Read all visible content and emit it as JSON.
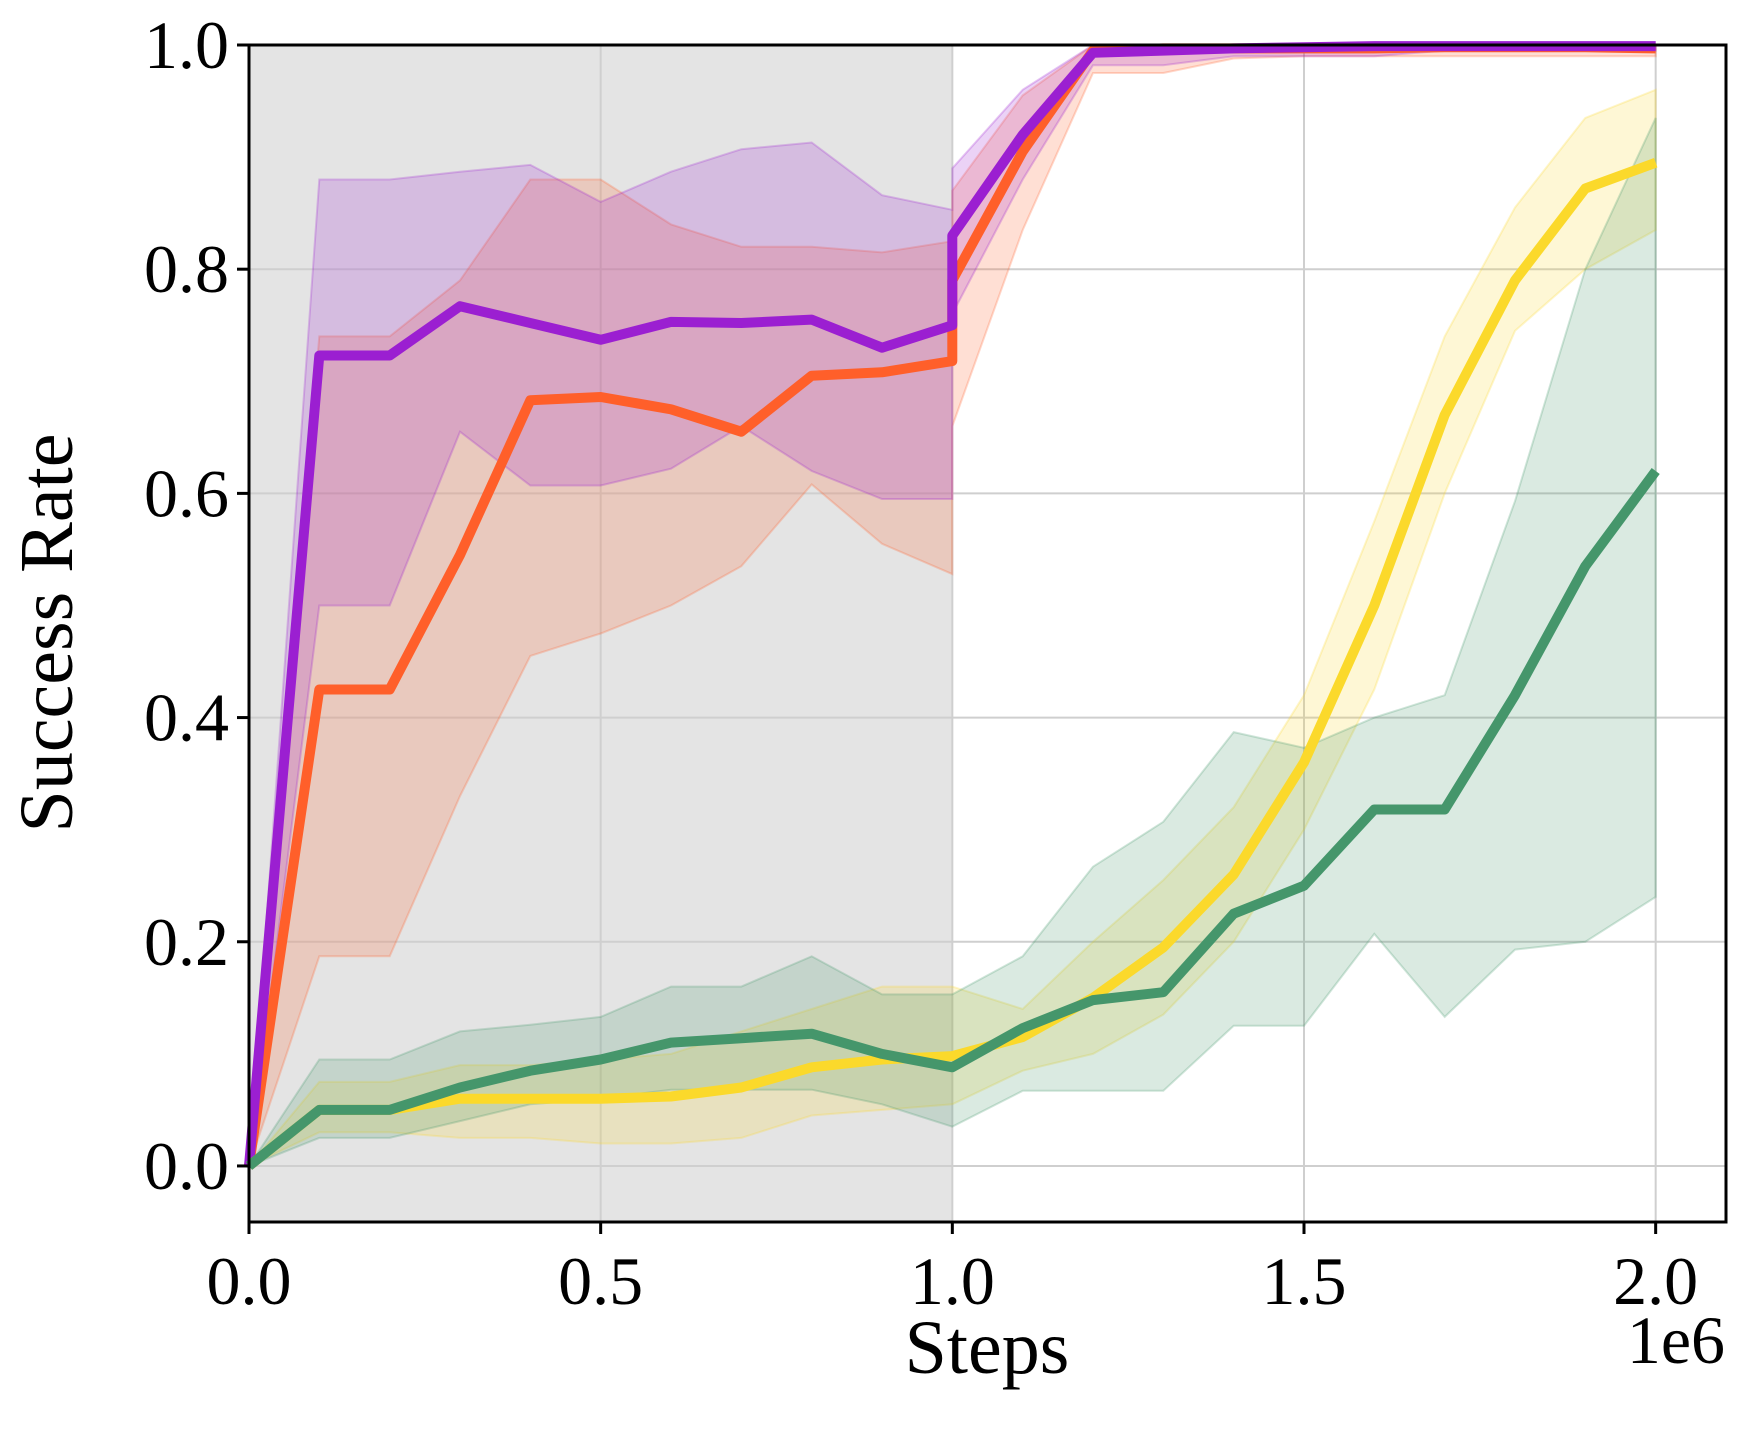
{
  "chart_data": {
    "type": "line",
    "title": "",
    "xlabel": "Steps",
    "ylabel": "Success Rate",
    "x_offset_label": "1e6",
    "xlim": [
      0.0,
      2.1
    ],
    "ylim": [
      -0.05,
      1.0
    ],
    "grid": true,
    "x_ticks": [
      0.0,
      0.5,
      1.0,
      1.5,
      2.0
    ],
    "x_tick_labels": [
      "0.0",
      "0.5",
      "1.0",
      "1.5",
      "2.0"
    ],
    "y_ticks": [
      0.0,
      0.2,
      0.4,
      0.6,
      0.8,
      1.0
    ],
    "y_tick_labels": [
      "0.0",
      "0.2",
      "0.4",
      "0.6",
      "0.8",
      "1.0"
    ],
    "shaded_region": {
      "x_start": 0.0,
      "x_end": 1.0,
      "color": "#e4e4e4"
    },
    "series": [
      {
        "name": "orange",
        "color": "#ff5f2a",
        "x": [
          0.0,
          0.1,
          0.2,
          0.3,
          0.4,
          0.5,
          0.6,
          0.7,
          0.8,
          0.9,
          1.0,
          1.0,
          1.1,
          1.2,
          1.3,
          1.4,
          1.5,
          1.6,
          1.7,
          1.8,
          1.9,
          2.0
        ],
        "values": [
          0.0,
          0.425,
          0.425,
          0.545,
          0.683,
          0.686,
          0.675,
          0.655,
          0.705,
          0.708,
          0.718,
          0.79,
          0.905,
          0.995,
          0.997,
          0.997,
          0.997,
          0.997,
          0.998,
          0.998,
          0.998,
          0.997
        ],
        "lower": [
          0.0,
          0.187,
          0.187,
          0.33,
          0.455,
          0.475,
          0.5,
          0.535,
          0.608,
          0.555,
          0.528,
          0.66,
          0.835,
          0.975,
          0.975,
          0.988,
          0.99,
          0.99,
          0.99,
          0.99,
          0.99,
          0.99
        ],
        "upper": [
          0.0,
          0.74,
          0.74,
          0.79,
          0.88,
          0.88,
          0.84,
          0.82,
          0.82,
          0.815,
          0.825,
          0.87,
          0.955,
          1.0,
          1.0,
          1.0,
          1.0,
          1.0,
          1.0,
          1.0,
          1.0,
          1.0
        ]
      },
      {
        "name": "purple",
        "color": "#9b1fd1",
        "x": [
          0.0,
          0.1,
          0.2,
          0.3,
          0.4,
          0.5,
          0.6,
          0.7,
          0.8,
          0.9,
          1.0,
          1.0,
          1.1,
          1.2,
          1.3,
          1.4,
          1.5,
          1.6,
          1.7,
          1.8,
          1.9,
          2.0
        ],
        "values": [
          0.0,
          0.723,
          0.723,
          0.767,
          0.752,
          0.737,
          0.753,
          0.752,
          0.755,
          0.73,
          0.75,
          0.83,
          0.92,
          0.993,
          0.995,
          0.997,
          0.998,
          0.999,
          0.999,
          0.999,
          0.999,
          0.999
        ],
        "lower": [
          0.0,
          0.5,
          0.5,
          0.655,
          0.607,
          0.607,
          0.622,
          0.66,
          0.62,
          0.595,
          0.595,
          0.76,
          0.88,
          0.982,
          0.982,
          0.99,
          0.99,
          0.99,
          0.995,
          0.995,
          0.995,
          0.995
        ],
        "upper": [
          0.0,
          0.88,
          0.88,
          0.887,
          0.893,
          0.86,
          0.887,
          0.907,
          0.913,
          0.866,
          0.853,
          0.89,
          0.96,
          1.0,
          1.0,
          1.0,
          1.0,
          1.0,
          1.0,
          1.0,
          1.0,
          1.0
        ]
      },
      {
        "name": "yellow",
        "color": "#fbd92b",
        "x": [
          0.0,
          0.1,
          0.2,
          0.3,
          0.4,
          0.5,
          0.6,
          0.7,
          0.8,
          0.9,
          1.0,
          1.1,
          1.2,
          1.3,
          1.4,
          1.5,
          1.6,
          1.7,
          1.8,
          1.9,
          2.0
        ],
        "values": [
          0.0,
          0.05,
          0.05,
          0.06,
          0.06,
          0.06,
          0.062,
          0.07,
          0.088,
          0.095,
          0.098,
          0.115,
          0.15,
          0.195,
          0.26,
          0.36,
          0.5,
          0.67,
          0.79,
          0.872,
          0.895
        ],
        "lower": [
          0.0,
          0.03,
          0.03,
          0.025,
          0.025,
          0.02,
          0.02,
          0.025,
          0.045,
          0.05,
          0.055,
          0.085,
          0.1,
          0.135,
          0.2,
          0.3,
          0.425,
          0.6,
          0.745,
          0.8,
          0.835
        ],
        "upper": [
          0.0,
          0.075,
          0.075,
          0.09,
          0.09,
          0.095,
          0.1,
          0.12,
          0.14,
          0.16,
          0.16,
          0.14,
          0.2,
          0.255,
          0.32,
          0.42,
          0.575,
          0.74,
          0.855,
          0.935,
          0.96
        ]
      },
      {
        "name": "green",
        "color": "#45966b",
        "x": [
          0.0,
          0.1,
          0.2,
          0.3,
          0.4,
          0.5,
          0.6,
          0.7,
          0.8,
          0.9,
          1.0,
          1.1,
          1.2,
          1.3,
          1.4,
          1.5,
          1.6,
          1.7,
          1.8,
          1.9,
          2.0
        ],
        "values": [
          0.0,
          0.05,
          0.05,
          0.07,
          0.085,
          0.095,
          0.11,
          0.114,
          0.118,
          0.1,
          0.088,
          0.123,
          0.148,
          0.155,
          0.225,
          0.25,
          0.318,
          0.318,
          0.42,
          0.535,
          0.62
        ],
        "lower": [
          0.0,
          0.025,
          0.025,
          0.04,
          0.055,
          0.06,
          0.068,
          0.068,
          0.068,
          0.055,
          0.035,
          0.067,
          0.067,
          0.067,
          0.125,
          0.125,
          0.207,
          0.133,
          0.193,
          0.2,
          0.24
        ],
        "upper": [
          0.0,
          0.095,
          0.095,
          0.12,
          0.126,
          0.133,
          0.16,
          0.16,
          0.187,
          0.153,
          0.153,
          0.187,
          0.267,
          0.307,
          0.387,
          0.373,
          0.4,
          0.42,
          0.593,
          0.8,
          0.935
        ]
      }
    ]
  }
}
